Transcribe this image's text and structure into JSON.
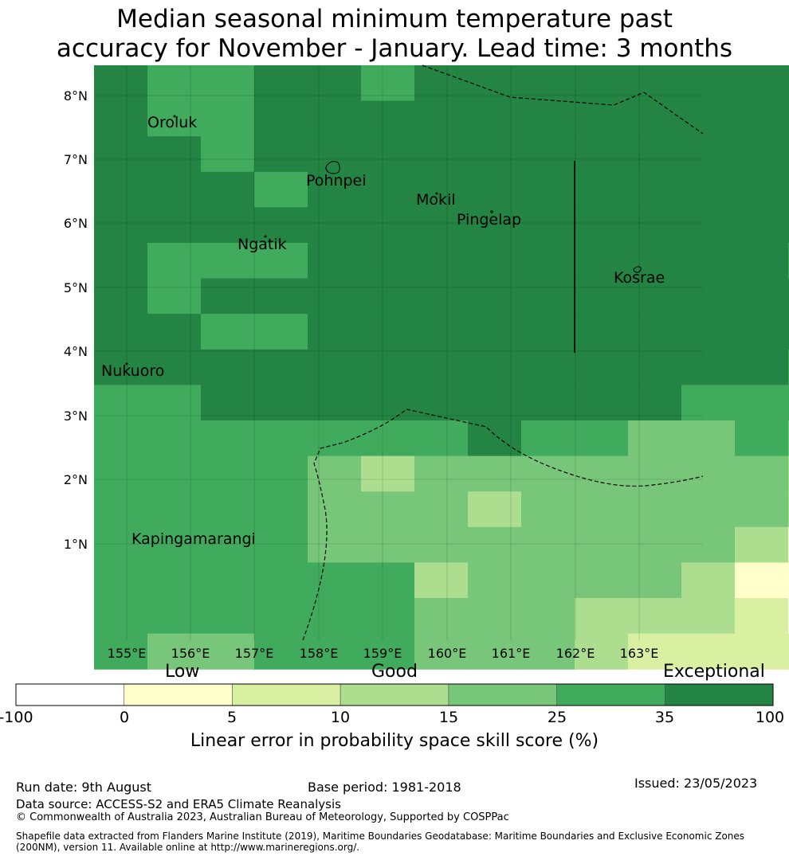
{
  "title": {
    "line1": "Median seasonal minimum temperature past",
    "line2": "accuracy for November - January. Lead time: 3 months"
  },
  "map": {
    "lat_labels": [
      "8°N",
      "7°N",
      "6°N",
      "5°N",
      "4°N",
      "3°N",
      "2°N",
      "1°N"
    ],
    "lon_labels": [
      "155°E",
      "156°E",
      "157°E",
      "158°E",
      "159°E",
      "160°E",
      "161°E",
      "162°E",
      "163°E"
    ],
    "places": [
      "Oroluk",
      "Pohnpei",
      "Mokil",
      "Pingelap",
      "Ngatik",
      "Kosrae",
      "Nukuoro",
      "Kapingamarangi"
    ],
    "grid": [
      [
        6,
        5,
        5,
        6,
        6,
        5,
        6,
        6,
        6,
        6,
        6,
        6,
        6,
        6,
        6,
        6,
        6
      ],
      [
        6,
        5,
        5,
        6,
        6,
        6,
        6,
        6,
        6,
        6,
        6,
        6,
        6,
        6,
        6,
        6,
        6
      ],
      [
        6,
        6,
        5,
        6,
        6,
        6,
        6,
        6,
        6,
        6,
        6,
        6,
        6,
        6,
        6,
        6,
        6
      ],
      [
        6,
        6,
        6,
        5,
        6,
        6,
        6,
        6,
        6,
        6,
        6,
        6,
        6,
        6,
        6,
        6,
        6
      ],
      [
        6,
        6,
        6,
        6,
        6,
        6,
        6,
        6,
        6,
        6,
        6,
        6,
        6,
        6,
        6,
        6,
        6
      ],
      [
        6,
        5,
        5,
        5,
        6,
        6,
        6,
        6,
        6,
        6,
        6,
        6,
        6,
        5,
        5,
        6,
        6
      ],
      [
        6,
        5,
        6,
        6,
        6,
        6,
        6,
        6,
        6,
        6,
        6,
        6,
        6,
        6,
        6,
        6,
        6
      ],
      [
        6,
        6,
        5,
        5,
        6,
        6,
        6,
        6,
        6,
        6,
        6,
        6,
        6,
        6,
        6,
        6,
        6
      ],
      [
        6,
        6,
        6,
        6,
        6,
        6,
        6,
        6,
        6,
        6,
        6,
        6,
        6,
        5,
        6,
        6,
        5
      ],
      [
        5,
        5,
        6,
        6,
        6,
        6,
        6,
        6,
        6,
        6,
        6,
        5,
        5,
        5,
        5,
        5,
        5
      ],
      [
        5,
        5,
        5,
        5,
        5,
        5,
        5,
        6,
        5,
        5,
        4,
        4,
        5,
        4,
        4,
        4,
        2
      ],
      [
        5,
        5,
        5,
        5,
        4,
        3,
        4,
        4,
        4,
        4,
        4,
        4,
        4,
        3,
        2,
        2,
        2
      ],
      [
        5,
        5,
        5,
        5,
        4,
        4,
        4,
        3,
        4,
        4,
        4,
        4,
        4,
        3,
        3,
        1,
        2
      ],
      [
        5,
        5,
        5,
        5,
        4,
        4,
        4,
        4,
        4,
        4,
        4,
        4,
        3,
        1,
        1,
        1,
        0
      ],
      [
        5,
        5,
        5,
        5,
        5,
        5,
        3,
        4,
        4,
        4,
        4,
        3,
        1,
        1,
        1,
        0,
        0
      ],
      [
        5,
        5,
        5,
        5,
        5,
        5,
        4,
        4,
        4,
        3,
        3,
        3,
        2,
        0,
        0,
        0,
        0
      ],
      [
        5,
        4,
        4,
        5,
        5,
        5,
        4,
        4,
        4,
        3,
        2,
        2,
        2,
        2,
        2,
        0,
        0
      ]
    ]
  },
  "colorbar": {
    "colors": [
      "#ffffff",
      "#ffffcc",
      "#d9f0a3",
      "#addd8e",
      "#78c679",
      "#41ab5d",
      "#238443"
    ],
    "ticks": [
      "-100",
      "0",
      "5",
      "10",
      "15",
      "25",
      "35",
      "100"
    ],
    "categories": [
      "Low",
      "Good",
      "Exceptional"
    ],
    "label": "Linear error in probability space skill score (%)"
  },
  "footer": {
    "run_date": "Run date: 9th August",
    "base_period": "Base period: 1981-2018",
    "issued": "Issued: 23/05/2023",
    "data_source": "Data source: ACCESS-S2 and ERA5 Climate Reanalysis",
    "copyright": "© Commonwealth of Australia 2023, Australian Bureau of Meteorology, Supported by COSPPac",
    "shapefile": "Shapefile data extracted from Flanders Marine Institute (2019), Maritime Boundaries Geodatabase: Maritime Boundaries and Exclusive Economic Zones (200NM), version 11. Available online at http://www.marineregions.org/."
  }
}
